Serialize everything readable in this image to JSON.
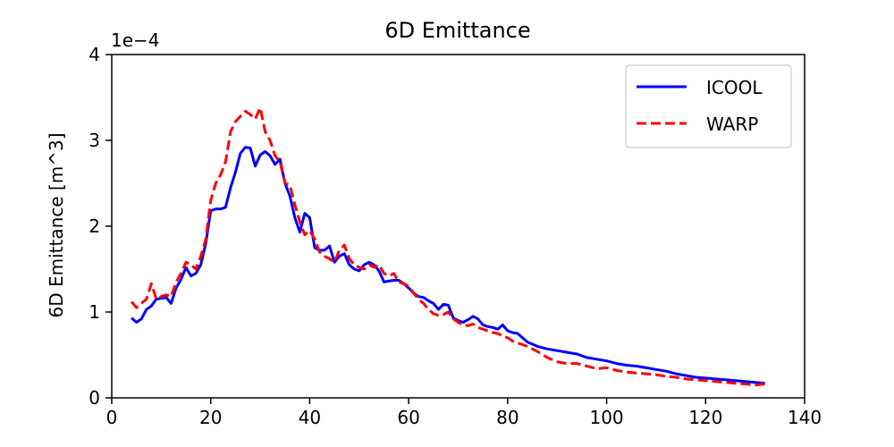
{
  "chart_data": {
    "type": "line",
    "title": "6D Emittance",
    "xlabel": "",
    "ylabel": "6D Emittance [m^3]",
    "y_offset_label": "1e−4",
    "xlim": [
      0,
      140
    ],
    "ylim": [
      0,
      4
    ],
    "xticks": [
      "0",
      "20",
      "40",
      "60",
      "80",
      "100",
      "120",
      "140"
    ],
    "yticks": [
      "0",
      "1",
      "2",
      "3",
      "4"
    ],
    "grid": false,
    "legend_position": "top-right",
    "series": [
      {
        "name": "ICOOL",
        "color": "#0000ff",
        "style": "solid",
        "x": [
          4,
          5,
          6,
          7,
          8,
          9,
          10,
          11,
          12,
          13,
          14,
          15,
          16,
          17,
          18,
          19,
          20,
          21,
          22,
          23,
          24,
          25,
          26,
          27,
          28,
          29,
          30,
          31,
          32,
          33,
          34,
          35,
          36,
          37,
          38,
          39,
          40,
          41,
          42,
          43,
          44,
          45,
          46,
          47,
          48,
          49,
          50,
          51,
          52,
          53,
          54,
          55,
          56,
          57,
          58,
          59,
          60,
          61,
          62,
          63,
          64,
          65,
          66,
          67,
          68,
          69,
          70,
          71,
          72,
          73,
          74,
          75,
          76,
          77,
          78,
          79,
          80,
          81,
          82,
          84,
          86,
          88,
          90,
          92,
          94,
          96,
          98,
          100,
          102,
          104,
          106,
          108,
          110,
          112,
          114,
          116,
          118,
          120,
          122,
          124,
          126,
          128,
          130,
          132
        ],
        "y": [
          0.93,
          0.88,
          0.92,
          1.03,
          1.07,
          1.15,
          1.16,
          1.17,
          1.1,
          1.28,
          1.38,
          1.52,
          1.42,
          1.45,
          1.55,
          1.8,
          2.18,
          2.2,
          2.2,
          2.22,
          2.45,
          2.63,
          2.85,
          2.92,
          2.91,
          2.7,
          2.83,
          2.87,
          2.82,
          2.72,
          2.78,
          2.5,
          2.35,
          2.1,
          1.93,
          2.15,
          2.1,
          1.75,
          1.72,
          1.72,
          1.77,
          1.58,
          1.65,
          1.68,
          1.55,
          1.5,
          1.48,
          1.55,
          1.58,
          1.55,
          1.48,
          1.35,
          1.36,
          1.37,
          1.37,
          1.33,
          1.28,
          1.22,
          1.18,
          1.17,
          1.13,
          1.1,
          1.03,
          1.09,
          1.08,
          0.93,
          0.9,
          0.88,
          0.91,
          0.95,
          0.92,
          0.85,
          0.83,
          0.82,
          0.8,
          0.85,
          0.78,
          0.76,
          0.75,
          0.65,
          0.6,
          0.57,
          0.55,
          0.53,
          0.51,
          0.47,
          0.45,
          0.43,
          0.4,
          0.38,
          0.37,
          0.35,
          0.33,
          0.31,
          0.28,
          0.26,
          0.24,
          0.23,
          0.22,
          0.21,
          0.2,
          0.19,
          0.18,
          0.17
        ]
      },
      {
        "name": "WARP",
        "color": "#ff0000",
        "style": "dashed",
        "x": [
          4,
          5,
          6,
          7,
          8,
          9,
          10,
          11,
          12,
          13,
          14,
          15,
          16,
          17,
          18,
          19,
          20,
          21,
          22,
          23,
          24,
          25,
          26,
          27,
          28,
          29,
          30,
          31,
          32,
          33,
          34,
          35,
          36,
          37,
          38,
          39,
          40,
          41,
          42,
          43,
          44,
          45,
          46,
          47,
          48,
          49,
          50,
          51,
          52,
          53,
          54,
          55,
          56,
          57,
          58,
          59,
          60,
          61,
          62,
          63,
          64,
          65,
          66,
          67,
          68,
          69,
          70,
          71,
          72,
          73,
          74,
          75,
          76,
          77,
          78,
          79,
          80,
          81,
          82,
          84,
          86,
          88,
          90,
          92,
          94,
          96,
          98,
          100,
          102,
          104,
          106,
          108,
          110,
          112,
          114,
          116,
          118,
          120,
          122,
          124,
          126,
          128,
          130,
          132
        ],
        "y": [
          1.12,
          1.05,
          1.1,
          1.15,
          1.33,
          1.15,
          1.18,
          1.2,
          1.18,
          1.35,
          1.45,
          1.58,
          1.55,
          1.5,
          1.65,
          1.85,
          2.3,
          2.5,
          2.6,
          2.75,
          3.1,
          3.22,
          3.28,
          3.34,
          3.3,
          3.25,
          3.38,
          3.1,
          3.0,
          2.82,
          2.75,
          2.5,
          2.48,
          2.25,
          2.05,
          1.9,
          1.95,
          1.85,
          1.7,
          1.65,
          1.62,
          1.58,
          1.72,
          1.78,
          1.62,
          1.55,
          1.52,
          1.5,
          1.55,
          1.52,
          1.55,
          1.45,
          1.42,
          1.45,
          1.35,
          1.33,
          1.3,
          1.22,
          1.15,
          1.1,
          1.03,
          0.98,
          0.96,
          0.97,
          1.0,
          0.92,
          0.88,
          0.85,
          0.84,
          0.86,
          0.82,
          0.8,
          0.78,
          0.76,
          0.75,
          0.72,
          0.7,
          0.66,
          0.64,
          0.6,
          0.54,
          0.47,
          0.42,
          0.4,
          0.4,
          0.37,
          0.34,
          0.35,
          0.32,
          0.3,
          0.29,
          0.28,
          0.27,
          0.25,
          0.24,
          0.22,
          0.21,
          0.2,
          0.19,
          0.18,
          0.17,
          0.16,
          0.15,
          0.16
        ]
      }
    ]
  }
}
